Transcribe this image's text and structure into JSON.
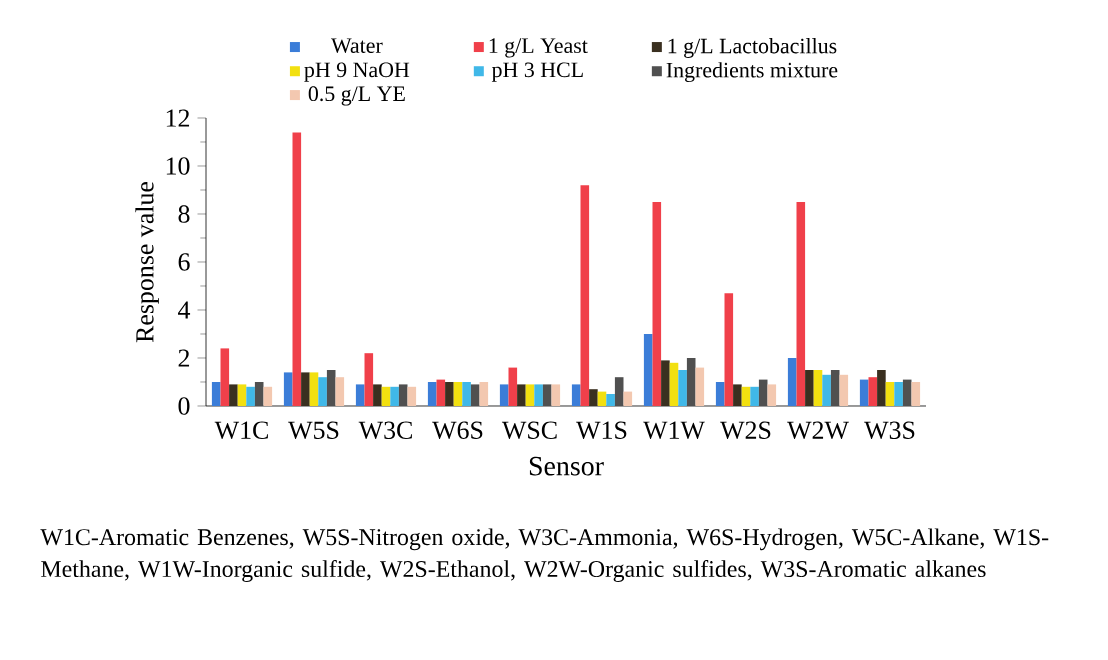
{
  "chart_data": {
    "type": "bar",
    "xlabel": "Sensor",
    "ylabel": "Response value",
    "categories": [
      "W1C",
      "W5S",
      "W3C",
      "W6S",
      "WSC",
      "W1S",
      "W1W",
      "W2S",
      "W2W",
      "W3S"
    ],
    "series": [
      {
        "name": "Water",
        "color": "#3b7dd8",
        "values": [
          1.0,
          1.4,
          0.9,
          1.0,
          0.9,
          0.9,
          3.0,
          1.0,
          2.0,
          1.1
        ]
      },
      {
        "name": "1 g/L Yeast",
        "color": "#f0404a",
        "values": [
          2.4,
          11.4,
          2.2,
          1.1,
          1.6,
          9.2,
          8.5,
          4.7,
          8.5,
          1.2
        ]
      },
      {
        "name": "1 g/L Lactobacillus",
        "color": "#3a3020",
        "values": [
          0.9,
          1.4,
          0.9,
          1.0,
          0.9,
          0.7,
          1.9,
          0.9,
          1.5,
          1.5
        ]
      },
      {
        "name": "pH 9 NaOH",
        "color": "#f2e010",
        "values": [
          0.9,
          1.4,
          0.8,
          1.0,
          0.9,
          0.6,
          1.8,
          0.8,
          1.5,
          1.0
        ]
      },
      {
        "name": "pH 3 HCL",
        "color": "#40b8e8",
        "values": [
          0.8,
          1.2,
          0.8,
          1.0,
          0.9,
          0.5,
          1.5,
          0.8,
          1.3,
          1.0
        ]
      },
      {
        "name": "Ingredients mixture",
        "color": "#505050",
        "values": [
          1.0,
          1.5,
          0.9,
          0.9,
          0.9,
          1.2,
          2.0,
          1.1,
          1.5,
          1.1
        ]
      },
      {
        "name": "0.5 g/L YE",
        "color": "#f3c8b0",
        "values": [
          0.8,
          1.2,
          0.8,
          1.0,
          0.9,
          0.6,
          1.6,
          0.9,
          1.3,
          1.0
        ]
      }
    ],
    "ylim": [
      0,
      12
    ],
    "yticks": [
      0,
      2,
      4,
      6,
      8,
      10,
      12
    ],
    "grid": false,
    "legend": "top",
    "annotations": [
      "W1C-Aromatic Benzenes, W5S-Nitrogen oxide, W3C-Ammonia, W6S-Hydrogen, W5C-Alkane, W1S-Methane, W1W-Inorganic sulfide, W2S-Ethanol, W2W-Organic sulfides, W3S-Aromatic alkanes"
    ]
  }
}
